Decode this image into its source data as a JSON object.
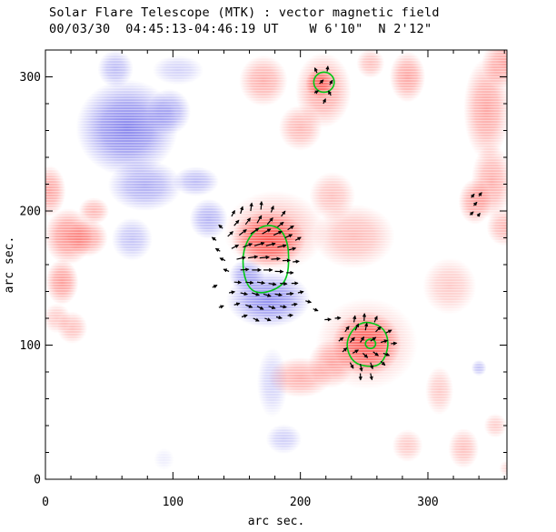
{
  "colors": {
    "background": "#ffffff",
    "positive_flux": "#fb4b45",
    "negative_flux": "#6b68e9",
    "contour": "#00c816",
    "vector": "#000000",
    "axis": "#000000",
    "text": "#000000"
  },
  "chart_data": {
    "type": "heatmap",
    "title": "Solar Flare Telescope (MTK) : vector magnetic field",
    "subtitle": "00/03/30  04:45:13-04:46:19 UT    W 6'10\"  N 2'12\"",
    "xlabel": "arc sec.",
    "ylabel": "arc sec.",
    "units": "arc sec",
    "xlim": [
      0,
      362
    ],
    "ylim": [
      0,
      320
    ],
    "xticks": [
      0,
      100,
      200,
      300
    ],
    "yticks": [
      0,
      100,
      200,
      300
    ],
    "minor_tick_step": 20,
    "grid": false,
    "legend": null,
    "blob_format": "[x_center, y_center, rx, ry, intensity] in arc sec, y measured up from bottom axis",
    "blobs": {
      "negative": [
        [
          64,
          262,
          40,
          36,
          0.8
        ],
        [
          55,
          306,
          14,
          14,
          0.45
        ],
        [
          104,
          305,
          20,
          11,
          0.3
        ],
        [
          97,
          274,
          17,
          17,
          0.55
        ],
        [
          78,
          219,
          29,
          19,
          0.55
        ],
        [
          68,
          179,
          16,
          16,
          0.4
        ],
        [
          118,
          222,
          18,
          11,
          0.45
        ],
        [
          128,
          194,
          15,
          15,
          0.5
        ],
        [
          175,
          134,
          33,
          21,
          0.75
        ],
        [
          158,
          152,
          14,
          12,
          0.6
        ],
        [
          178,
          72,
          12,
          26,
          0.3
        ],
        [
          187,
          30,
          14,
          11,
          0.33
        ],
        [
          340,
          83,
          6,
          6,
          0.4
        ],
        [
          93,
          15,
          8,
          8,
          0.12
        ]
      ],
      "positive": [
        [
          218,
          290,
          22,
          28,
          0.5
        ],
        [
          215,
          295,
          11,
          11,
          0.75
        ],
        [
          200,
          262,
          17,
          17,
          0.4
        ],
        [
          171,
          297,
          19,
          19,
          0.45
        ],
        [
          284,
          300,
          14,
          19,
          0.5
        ],
        [
          346,
          276,
          18,
          38,
          0.5
        ],
        [
          350,
          222,
          16,
          28,
          0.45
        ],
        [
          360,
          310,
          18,
          18,
          0.5
        ],
        [
          3,
          215,
          13,
          19,
          0.5
        ],
        [
          18,
          181,
          19,
          21,
          0.6
        ],
        [
          33,
          180,
          16,
          14,
          0.5
        ],
        [
          38,
          200,
          12,
          10,
          0.4
        ],
        [
          13,
          147,
          13,
          17,
          0.55
        ],
        [
          21,
          113,
          12,
          12,
          0.35
        ],
        [
          9,
          120,
          11,
          11,
          0.3
        ],
        [
          180,
          185,
          40,
          30,
          0.4
        ],
        [
          175,
          179,
          29,
          21,
          0.9
        ],
        [
          242,
          181,
          32,
          24,
          0.38
        ],
        [
          225,
          211,
          18,
          18,
          0.35
        ],
        [
          337,
          207,
          13,
          17,
          0.5
        ],
        [
          317,
          144,
          21,
          21,
          0.3
        ],
        [
          360,
          188,
          14,
          14,
          0.4
        ],
        [
          252,
          101,
          40,
          34,
          0.35
        ],
        [
          252,
          101,
          27,
          24,
          0.85
        ],
        [
          200,
          76,
          25,
          15,
          0.45
        ],
        [
          224,
          86,
          18,
          18,
          0.45
        ],
        [
          309,
          66,
          11,
          18,
          0.3
        ],
        [
          284,
          25,
          12,
          12,
          0.3
        ],
        [
          328,
          23,
          12,
          15,
          0.35
        ],
        [
          353,
          40,
          9,
          9,
          0.28
        ],
        [
          255,
          310,
          11,
          11,
          0.35
        ],
        [
          362,
          8,
          6,
          6,
          0.2
        ]
      ]
    },
    "contours": [
      {
        "shape": "ellipse",
        "cx": 218.5,
        "cy": 296,
        "rx": 8,
        "ry": 7.5
      },
      {
        "shape": "polygon",
        "points": [
          [
            173,
            190
          ],
          [
            184,
            187.5
          ],
          [
            190,
            177
          ],
          [
            191,
            164
          ],
          [
            190,
            152
          ],
          [
            185,
            143.5
          ],
          [
            170,
            138
          ],
          [
            160,
            141.5
          ],
          [
            155,
            154
          ],
          [
            155,
            171
          ],
          [
            162,
            184
          ]
        ]
      },
      {
        "shape": "polygon",
        "points": [
          [
            251,
            118
          ],
          [
            264,
            114
          ],
          [
            269,
            105
          ],
          [
            268,
            94
          ],
          [
            262,
            84.5
          ],
          [
            251,
            84
          ],
          [
            242,
            87
          ],
          [
            237,
            95
          ],
          [
            236.5,
            104
          ],
          [
            242,
            113
          ]
        ]
      },
      {
        "shape": "ellipse",
        "cx": 255,
        "cy": 101,
        "rx": 4,
        "ry": 3.5
      }
    ],
    "vector_format": "[x, y, angle_deg_ccw_from_east, length] in arc sec",
    "vectors": [
      [
        146,
        196,
        60,
        5
      ],
      [
        153,
        198,
        72,
        5.5
      ],
      [
        161,
        200,
        82,
        6
      ],
      [
        169,
        201,
        85,
        6
      ],
      [
        177,
        199,
        68,
        5
      ],
      [
        185,
        196,
        52,
        5
      ],
      [
        139,
        187,
        140,
        4
      ],
      [
        148,
        189,
        48,
        5.5
      ],
      [
        157,
        190,
        52,
        6
      ],
      [
        166,
        191,
        58,
        6.5
      ],
      [
        174,
        190,
        48,
        6.5
      ],
      [
        182,
        188,
        38,
        6
      ],
      [
        190,
        186,
        32,
        5.5
      ],
      [
        134,
        178,
        145,
        4
      ],
      [
        143,
        181,
        42,
        5.5
      ],
      [
        152,
        182,
        36,
        7
      ],
      [
        161,
        183,
        33,
        7.5
      ],
      [
        170,
        183,
        28,
        7.5
      ],
      [
        179,
        182,
        24,
        7
      ],
      [
        188,
        180,
        24,
        6
      ],
      [
        196,
        178,
        28,
        5
      ],
      [
        137,
        170,
        150,
        4
      ],
      [
        146,
        172,
        26,
        6
      ],
      [
        155,
        173,
        20,
        7.5
      ],
      [
        164,
        174,
        17,
        8
      ],
      [
        173,
        174,
        14,
        7.5
      ],
      [
        182,
        173,
        12,
        7
      ],
      [
        191,
        171,
        14,
        5.5
      ],
      [
        141,
        163,
        155,
        4.5
      ],
      [
        150,
        164,
        12,
        7
      ],
      [
        159,
        165,
        8,
        7.5
      ],
      [
        168,
        165,
        5,
        7.5
      ],
      [
        177,
        164,
        4,
        7
      ],
      [
        186,
        163,
        2,
        6
      ],
      [
        194,
        162,
        6,
        5
      ],
      [
        144,
        155,
        160,
        4.5
      ],
      [
        153,
        156,
        4,
        6.5
      ],
      [
        162,
        156,
        0,
        7
      ],
      [
        171,
        156,
        0,
        7
      ],
      [
        180,
        155,
        -2,
        6.5
      ],
      [
        189,
        154,
        0,
        5.5
      ],
      [
        148,
        147,
        -4,
        5.5
      ],
      [
        157,
        147,
        -6,
        6
      ],
      [
        166,
        147,
        -8,
        6
      ],
      [
        175,
        146,
        -8,
        6
      ],
      [
        184,
        146,
        -4,
        5.5
      ],
      [
        193,
        146,
        2,
        5
      ],
      [
        144,
        139,
        10,
        4.5
      ],
      [
        153,
        139,
        -12,
        5.5
      ],
      [
        162,
        139,
        -18,
        6
      ],
      [
        171,
        138,
        -15,
        6
      ],
      [
        180,
        138,
        -8,
        5.5
      ],
      [
        189,
        138,
        5,
        5.5
      ],
      [
        198,
        139,
        12,
        4.5
      ],
      [
        148,
        130,
        15,
        4.5
      ],
      [
        157,
        130,
        -20,
        5.5
      ],
      [
        166,
        129,
        -25,
        5.5
      ],
      [
        175,
        129,
        -18,
        5.5
      ],
      [
        184,
        129,
        -8,
        5
      ],
      [
        193,
        130,
        8,
        4.5
      ],
      [
        154,
        121,
        18,
        4.5
      ],
      [
        163,
        120,
        -25,
        5
      ],
      [
        172,
        120,
        -20,
        5
      ],
      [
        181,
        121,
        -12,
        4.5
      ],
      [
        190,
        122,
        5,
        4
      ],
      [
        204,
        133,
        -15,
        4.5
      ],
      [
        210,
        127,
        -20,
        4
      ],
      [
        219,
        119,
        2,
        5
      ],
      [
        227,
        120,
        4,
        4.5
      ],
      [
        136,
        128,
        20,
        4
      ],
      [
        131,
        143,
        25,
        4
      ],
      [
        213,
        303,
        115,
        4
      ],
      [
        221,
        304,
        82,
        4
      ],
      [
        215,
        295,
        42,
        4
      ],
      [
        223,
        294,
        58,
        4
      ],
      [
        211,
        288,
        28,
        3.5
      ],
      [
        224,
        286,
        120,
        4
      ],
      [
        218,
        280,
        65,
        4
      ],
      [
        242,
        117,
        80,
        5
      ],
      [
        250,
        118,
        87,
        5.5
      ],
      [
        258,
        117,
        64,
        5
      ],
      [
        235,
        110,
        52,
        5
      ],
      [
        243,
        111,
        62,
        5.5
      ],
      [
        251,
        111,
        78,
        5.5
      ],
      [
        259,
        110,
        42,
        5.5
      ],
      [
        267,
        109,
        26,
        5
      ],
      [
        230,
        103,
        36,
        4.5
      ],
      [
        239,
        102,
        46,
        5
      ],
      [
        247,
        102,
        55,
        5
      ],
      [
        255,
        103,
        34,
        5
      ],
      [
        263,
        102,
        16,
        5.5
      ],
      [
        271,
        101,
        6,
        4.5
      ],
      [
        233,
        95,
        40,
        4.5
      ],
      [
        241,
        94,
        28,
        5
      ],
      [
        249,
        94,
        -42,
        5
      ],
      [
        257,
        95,
        -35,
        5
      ],
      [
        265,
        94,
        -20,
        5
      ],
      [
        239,
        87,
        -60,
        5
      ],
      [
        247,
        86,
        -78,
        5.5
      ],
      [
        255,
        87,
        -70,
        5
      ],
      [
        263,
        88,
        -42,
        4.5
      ],
      [
        247,
        79,
        -88,
        5
      ],
      [
        255,
        79,
        -76,
        5
      ],
      [
        334,
        210,
        48,
        3.5
      ],
      [
        340,
        211,
        52,
        3.5
      ],
      [
        336,
        204,
        46,
        3.5
      ],
      [
        333,
        197,
        42,
        3.5
      ],
      [
        339,
        196,
        50,
        3
      ]
    ]
  }
}
